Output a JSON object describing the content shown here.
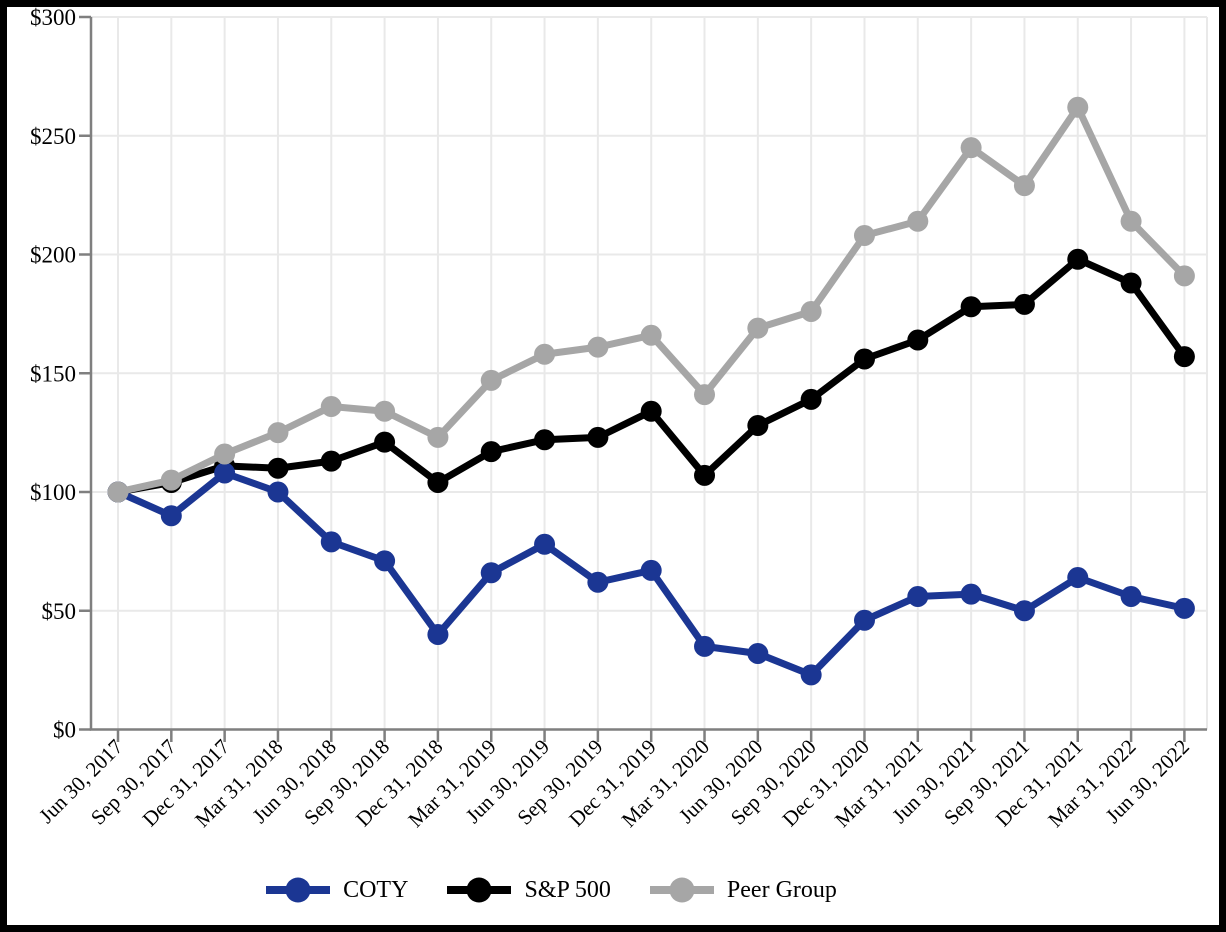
{
  "chart_data": {
    "type": "line",
    "title": "",
    "x_categories": [
      "Jun 30, 2017",
      "Sep 30, 2017",
      "Dec 31, 2017",
      "Mar 31, 2018",
      "Jun 30, 2018",
      "Sep 30, 2018",
      "Dec 31, 2018",
      "Mar 31, 2019",
      "Jun 30, 2019",
      "Sep 30, 2019",
      "Dec 31, 2019",
      "Mar 31, 2020",
      "Jun 30, 2020",
      "Sep 30, 2020",
      "Dec 31, 2020",
      "Mar 31, 2021",
      "Jun 30, 2021",
      "Sep 30, 2021",
      "Dec 31, 2021",
      "Mar 31, 2022",
      "Jun 30, 2022"
    ],
    "series": [
      {
        "name": "COTY",
        "color": "#1b3693",
        "values": [
          100,
          90,
          108,
          100,
          79,
          71,
          40,
          66,
          78,
          62,
          67,
          35,
          32,
          23,
          46,
          56,
          57,
          50,
          64,
          56,
          51
        ]
      },
      {
        "name": "S&P 500",
        "color": "#000000",
        "values": [
          100,
          104,
          111,
          110,
          113,
          121,
          104,
          117,
          122,
          123,
          134,
          107,
          128,
          139,
          156,
          164,
          178,
          179,
          198,
          188,
          157
        ]
      },
      {
        "name": "Peer Group",
        "color": "#a6a6a6",
        "values": [
          100,
          105,
          116,
          125,
          136,
          134,
          123,
          147,
          158,
          161,
          166,
          141,
          169,
          176,
          208,
          214,
          245,
          229,
          262,
          214,
          191
        ]
      }
    ],
    "ylim": [
      0,
      300
    ],
    "y_tick_step": 50,
    "y_tick_labels": [
      "$0",
      "$50",
      "$100",
      "$150",
      "$200",
      "$250",
      "$300"
    ],
    "grid": true,
    "legend_position": "bottom",
    "colors": {
      "axis": "#7f7f7f",
      "gridline": "#e9e9e9",
      "text": "#000000",
      "background": "#ffffff",
      "frame_border": "#000000"
    }
  },
  "legend": {
    "items": [
      {
        "label": "COTY"
      },
      {
        "label": "S&P 500"
      },
      {
        "label": "Peer Group"
      }
    ]
  }
}
